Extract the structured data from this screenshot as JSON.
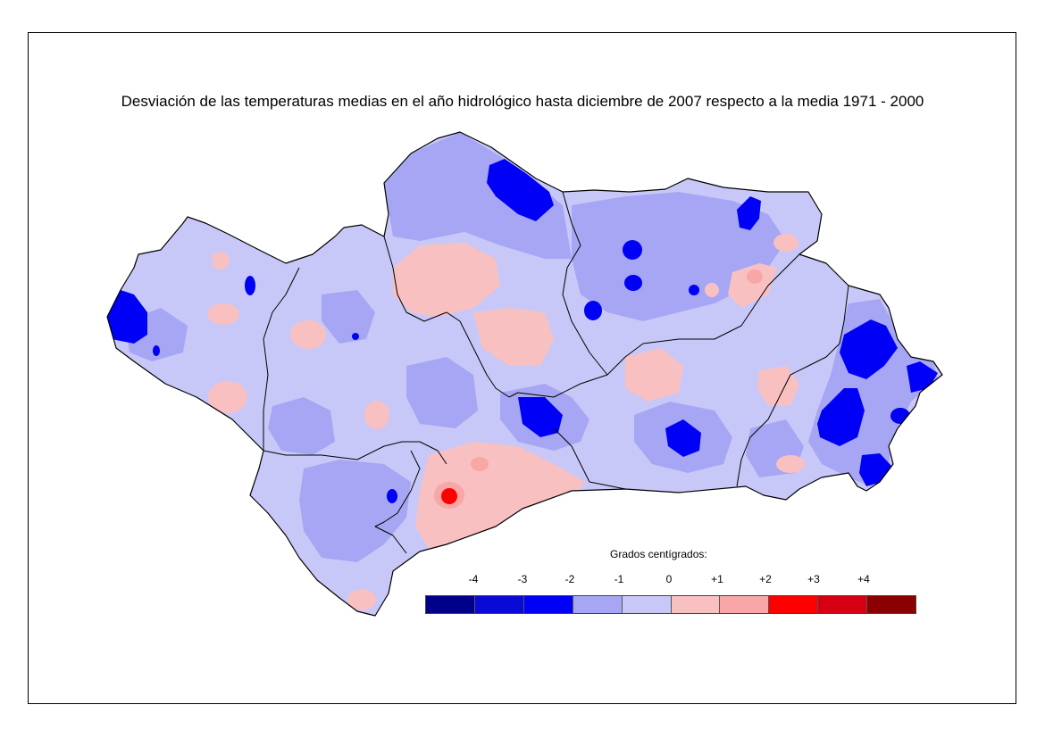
{
  "title": "Desviación de las temperaturas medias en el año hidrológico hasta diciembre de 2007 respecto a la media 1971 - 2000",
  "legend": {
    "title": "Grados centígrados:",
    "ticks": [
      "-4",
      "-3",
      "-2",
      "-1",
      "0",
      "+1",
      "+2",
      "+3",
      "+4"
    ],
    "colors": [
      "#00008b",
      "#0a0ad8",
      "#0000f6",
      "#a6a6f4",
      "#c8c8f8",
      "#f8c0c0",
      "#f8a6a6",
      "#ff0000",
      "#d60012",
      "#8b0000"
    ]
  },
  "map": {
    "base_color": "#c8c8f8",
    "border_color": "#000000"
  }
}
